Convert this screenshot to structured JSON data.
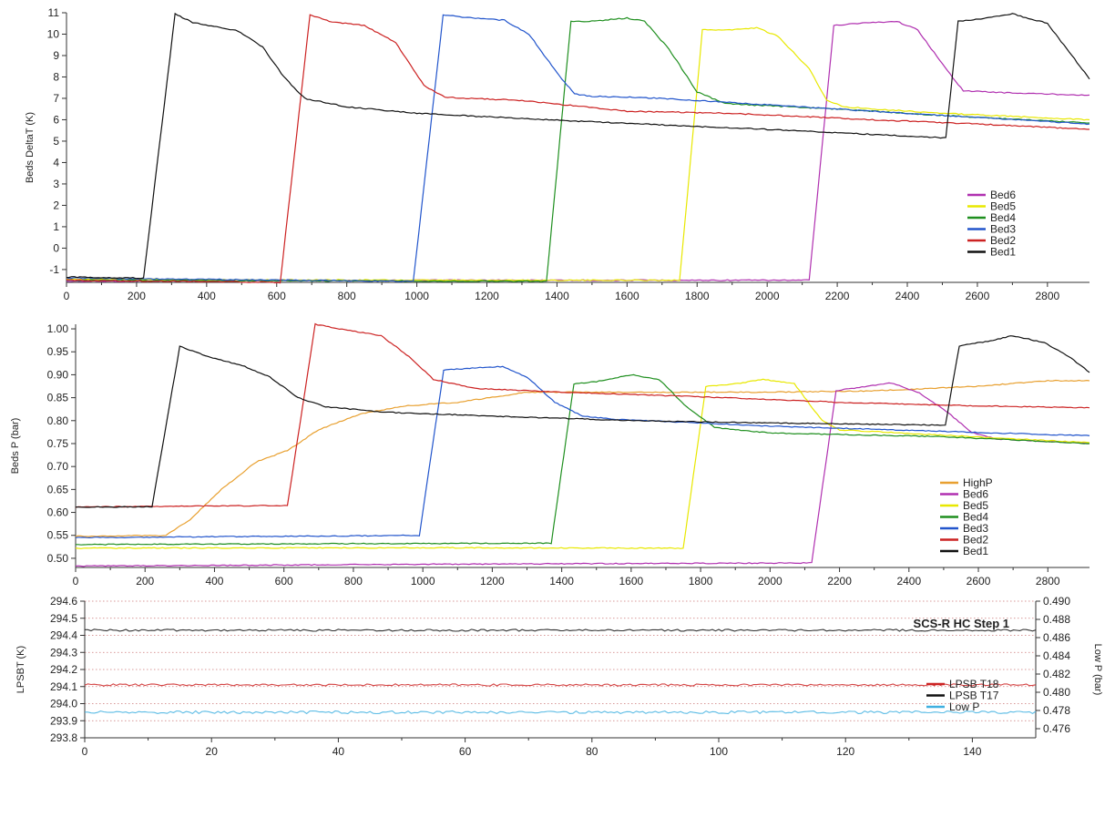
{
  "chart_data": [
    {
      "type": "line",
      "ylabel": "Beds DeltaT (K)",
      "xlim": [
        0,
        2920
      ],
      "ylim": [
        -1.6,
        11
      ],
      "xticks": [
        0,
        200,
        400,
        600,
        800,
        1000,
        1200,
        1400,
        1600,
        1800,
        2000,
        2200,
        2400,
        2600,
        2800
      ],
      "yticks": [
        -1,
        0,
        1,
        2,
        3,
        4,
        5,
        6,
        7,
        8,
        9,
        10,
        11
      ],
      "legend_position": "right",
      "series": [
        {
          "name": "Bed6",
          "color": "#b030b0",
          "points": [
            [
              0,
              -1.55
            ],
            [
              1000,
              -1.5
            ],
            [
              2120,
              -1.5
            ],
            [
              2190,
              10.4
            ],
            [
              2250,
              10.5
            ],
            [
              2370,
              10.6
            ],
            [
              2430,
              10.2
            ],
            [
              2500,
              8.6
            ],
            [
              2560,
              7.35
            ],
            [
              2700,
              7.25
            ],
            [
              2920,
              7.15
            ]
          ]
        },
        {
          "name": "Bed5",
          "color": "#e8e800",
          "points": [
            [
              0,
              -1.45
            ],
            [
              1000,
              -1.5
            ],
            [
              1750,
              -1.5
            ],
            [
              1815,
              10.2
            ],
            [
              1900,
              10.2
            ],
            [
              1970,
              10.3
            ],
            [
              2030,
              9.9
            ],
            [
              2120,
              8.4
            ],
            [
              2170,
              6.9
            ],
            [
              2220,
              6.6
            ],
            [
              2500,
              6.3
            ],
            [
              2920,
              6.0
            ]
          ]
        },
        {
          "name": "Bed4",
          "color": "#1f8f1f",
          "points": [
            [
              0,
              -1.5
            ],
            [
              1370,
              -1.55
            ],
            [
              1440,
              10.6
            ],
            [
              1500,
              10.6
            ],
            [
              1600,
              10.75
            ],
            [
              1650,
              10.6
            ],
            [
              1720,
              9.3
            ],
            [
              1800,
              7.3
            ],
            [
              1880,
              6.75
            ],
            [
              2200,
              6.5
            ],
            [
              2500,
              6.2
            ],
            [
              2920,
              5.85
            ]
          ]
        },
        {
          "name": "Bed3",
          "color": "#2255cc",
          "points": [
            [
              0,
              -1.4
            ],
            [
              990,
              -1.55
            ],
            [
              1075,
              10.9
            ],
            [
              1130,
              10.8
            ],
            [
              1250,
              10.65
            ],
            [
              1320,
              10.0
            ],
            [
              1400,
              8.2
            ],
            [
              1450,
              7.2
            ],
            [
              1500,
              7.1
            ],
            [
              1700,
              7.0
            ],
            [
              2000,
              6.7
            ],
            [
              2500,
              6.2
            ],
            [
              2920,
              5.8
            ]
          ]
        },
        {
          "name": "Bed2",
          "color": "#cc2222",
          "points": [
            [
              0,
              -1.5
            ],
            [
              610,
              -1.6
            ],
            [
              695,
              10.9
            ],
            [
              750,
              10.6
            ],
            [
              850,
              10.4
            ],
            [
              940,
              9.6
            ],
            [
              1020,
              7.6
            ],
            [
              1080,
              7.05
            ],
            [
              1300,
              6.9
            ],
            [
              1600,
              6.4
            ],
            [
              1900,
              6.3
            ],
            [
              2300,
              6.0
            ],
            [
              2600,
              5.8
            ],
            [
              2920,
              5.55
            ]
          ]
        },
        {
          "name": "Bed1",
          "color": "#111111",
          "points": [
            [
              0,
              -1.35
            ],
            [
              220,
              -1.4
            ],
            [
              310,
              10.95
            ],
            [
              360,
              10.55
            ],
            [
              490,
              10.15
            ],
            [
              560,
              9.4
            ],
            [
              620,
              8.0
            ],
            [
              680,
              7.0
            ],
            [
              800,
              6.6
            ],
            [
              1000,
              6.3
            ],
            [
              1500,
              5.9
            ],
            [
              2000,
              5.55
            ],
            [
              2510,
              5.15
            ],
            [
              2545,
              10.6
            ],
            [
              2610,
              10.7
            ],
            [
              2700,
              10.95
            ],
            [
              2800,
              10.5
            ],
            [
              2870,
              9.0
            ],
            [
              2920,
              7.9
            ]
          ]
        }
      ]
    },
    {
      "type": "line",
      "ylabel": "Beds P (bar)",
      "xlim": [
        0,
        2920
      ],
      "ylim": [
        0.48,
        1.01
      ],
      "xticks": [
        0,
        200,
        400,
        600,
        800,
        1000,
        1200,
        1400,
        1600,
        1800,
        2000,
        2200,
        2400,
        2600,
        2800
      ],
      "yticks": [
        "0.50",
        "0.55",
        "0.60",
        "0.65",
        "0.70",
        "0.75",
        "0.80",
        "0.85",
        "0.90",
        "0.95",
        "1.00"
      ],
      "legend_position": "right",
      "series": [
        {
          "name": "HighP",
          "color": "#e8a030",
          "points": [
            [
              0,
              0.548
            ],
            [
              260,
              0.55
            ],
            [
              330,
              0.585
            ],
            [
              420,
              0.65
            ],
            [
              520,
              0.71
            ],
            [
              610,
              0.735
            ],
            [
              700,
              0.78
            ],
            [
              820,
              0.815
            ],
            [
              950,
              0.832
            ],
            [
              1100,
              0.84
            ],
            [
              1300,
              0.862
            ],
            [
              1500,
              0.862
            ],
            [
              1700,
              0.862
            ],
            [
              2000,
              0.862
            ],
            [
              2300,
              0.865
            ],
            [
              2600,
              0.875
            ],
            [
              2800,
              0.887
            ],
            [
              2920,
              0.887
            ]
          ]
        },
        {
          "name": "Bed6",
          "color": "#b030b0",
          "points": [
            [
              0,
              0.483
            ],
            [
              1000,
              0.487
            ],
            [
              2120,
              0.49
            ],
            [
              2190,
              0.865
            ],
            [
              2280,
              0.875
            ],
            [
              2350,
              0.882
            ],
            [
              2430,
              0.86
            ],
            [
              2500,
              0.825
            ],
            [
              2580,
              0.775
            ],
            [
              2650,
              0.76
            ],
            [
              2920,
              0.75
            ]
          ]
        },
        {
          "name": "Bed5",
          "color": "#e8e800",
          "points": [
            [
              0,
              0.522
            ],
            [
              1000,
              0.523
            ],
            [
              1750,
              0.522
            ],
            [
              1815,
              0.875
            ],
            [
              1900,
              0.88
            ],
            [
              1980,
              0.89
            ],
            [
              2070,
              0.88
            ],
            [
              2150,
              0.8
            ],
            [
              2200,
              0.78
            ],
            [
              2920,
              0.752
            ]
          ]
        },
        {
          "name": "Bed4",
          "color": "#1f8f1f",
          "points": [
            [
              0,
              0.53
            ],
            [
              1370,
              0.533
            ],
            [
              1435,
              0.88
            ],
            [
              1500,
              0.885
            ],
            [
              1600,
              0.9
            ],
            [
              1680,
              0.89
            ],
            [
              1760,
              0.83
            ],
            [
              1840,
              0.785
            ],
            [
              2000,
              0.773
            ],
            [
              2500,
              0.765
            ],
            [
              2920,
              0.75
            ]
          ]
        },
        {
          "name": "Bed3",
          "color": "#2255cc",
          "points": [
            [
              0,
              0.545
            ],
            [
              990,
              0.55
            ],
            [
              1060,
              0.91
            ],
            [
              1150,
              0.915
            ],
            [
              1230,
              0.918
            ],
            [
              1300,
              0.895
            ],
            [
              1380,
              0.84
            ],
            [
              1460,
              0.81
            ],
            [
              1550,
              0.803
            ],
            [
              2000,
              0.788
            ],
            [
              2920,
              0.767
            ]
          ]
        },
        {
          "name": "Bed2",
          "color": "#cc2222",
          "points": [
            [
              0,
              0.612
            ],
            [
              610,
              0.615
            ],
            [
              690,
              1.01
            ],
            [
              760,
              1.0
            ],
            [
              880,
              0.985
            ],
            [
              960,
              0.94
            ],
            [
              1030,
              0.89
            ],
            [
              1150,
              0.87
            ],
            [
              1400,
              0.862
            ],
            [
              1800,
              0.852
            ],
            [
              2200,
              0.84
            ],
            [
              2600,
              0.832
            ],
            [
              2920,
              0.828
            ]
          ]
        },
        {
          "name": "Bed1",
          "color": "#111111",
          "points": [
            [
              0,
              0.612
            ],
            [
              220,
              0.612
            ],
            [
              300,
              0.962
            ],
            [
              380,
              0.94
            ],
            [
              480,
              0.92
            ],
            [
              560,
              0.895
            ],
            [
              640,
              0.85
            ],
            [
              720,
              0.83
            ],
            [
              900,
              0.818
            ],
            [
              1200,
              0.81
            ],
            [
              1600,
              0.8
            ],
            [
              2000,
              0.795
            ],
            [
              2505,
              0.79
            ],
            [
              2545,
              0.963
            ],
            [
              2620,
              0.972
            ],
            [
              2700,
              0.985
            ],
            [
              2790,
              0.97
            ],
            [
              2860,
              0.94
            ],
            [
              2920,
              0.905
            ]
          ]
        }
      ]
    },
    {
      "type": "line",
      "title": "SCS-R HC Step 1",
      "ylabel": "LPSBT (K)",
      "y2label": "Low P (bar)",
      "xlim": [
        0,
        150
      ],
      "ylim": [
        293.8,
        294.6
      ],
      "y2lim": [
        0.475,
        0.49
      ],
      "xticks": [
        0,
        20,
        40,
        60,
        80,
        100,
        120,
        140
      ],
      "yticks": [
        "293.8",
        "293.9",
        "294.0",
        "294.1",
        "294.2",
        "294.3",
        "294.4",
        "294.5",
        "294.6"
      ],
      "y2ticks": [
        "0.476",
        "0.478",
        "0.480",
        "0.482",
        "0.484",
        "0.486",
        "0.488",
        "0.490"
      ],
      "grid": "horizontal dotted",
      "legend_position": "right",
      "series": [
        {
          "name": "LPSB T18",
          "color": "#cc2222",
          "axis": "left",
          "values_approx": 294.11
        },
        {
          "name": "LPSB T17",
          "color": "#111111",
          "axis": "left",
          "values_approx": 294.43
        },
        {
          "name": "Low P",
          "color": "#40b0e0",
          "axis": "right",
          "values_approx": 0.4778
        }
      ]
    }
  ]
}
